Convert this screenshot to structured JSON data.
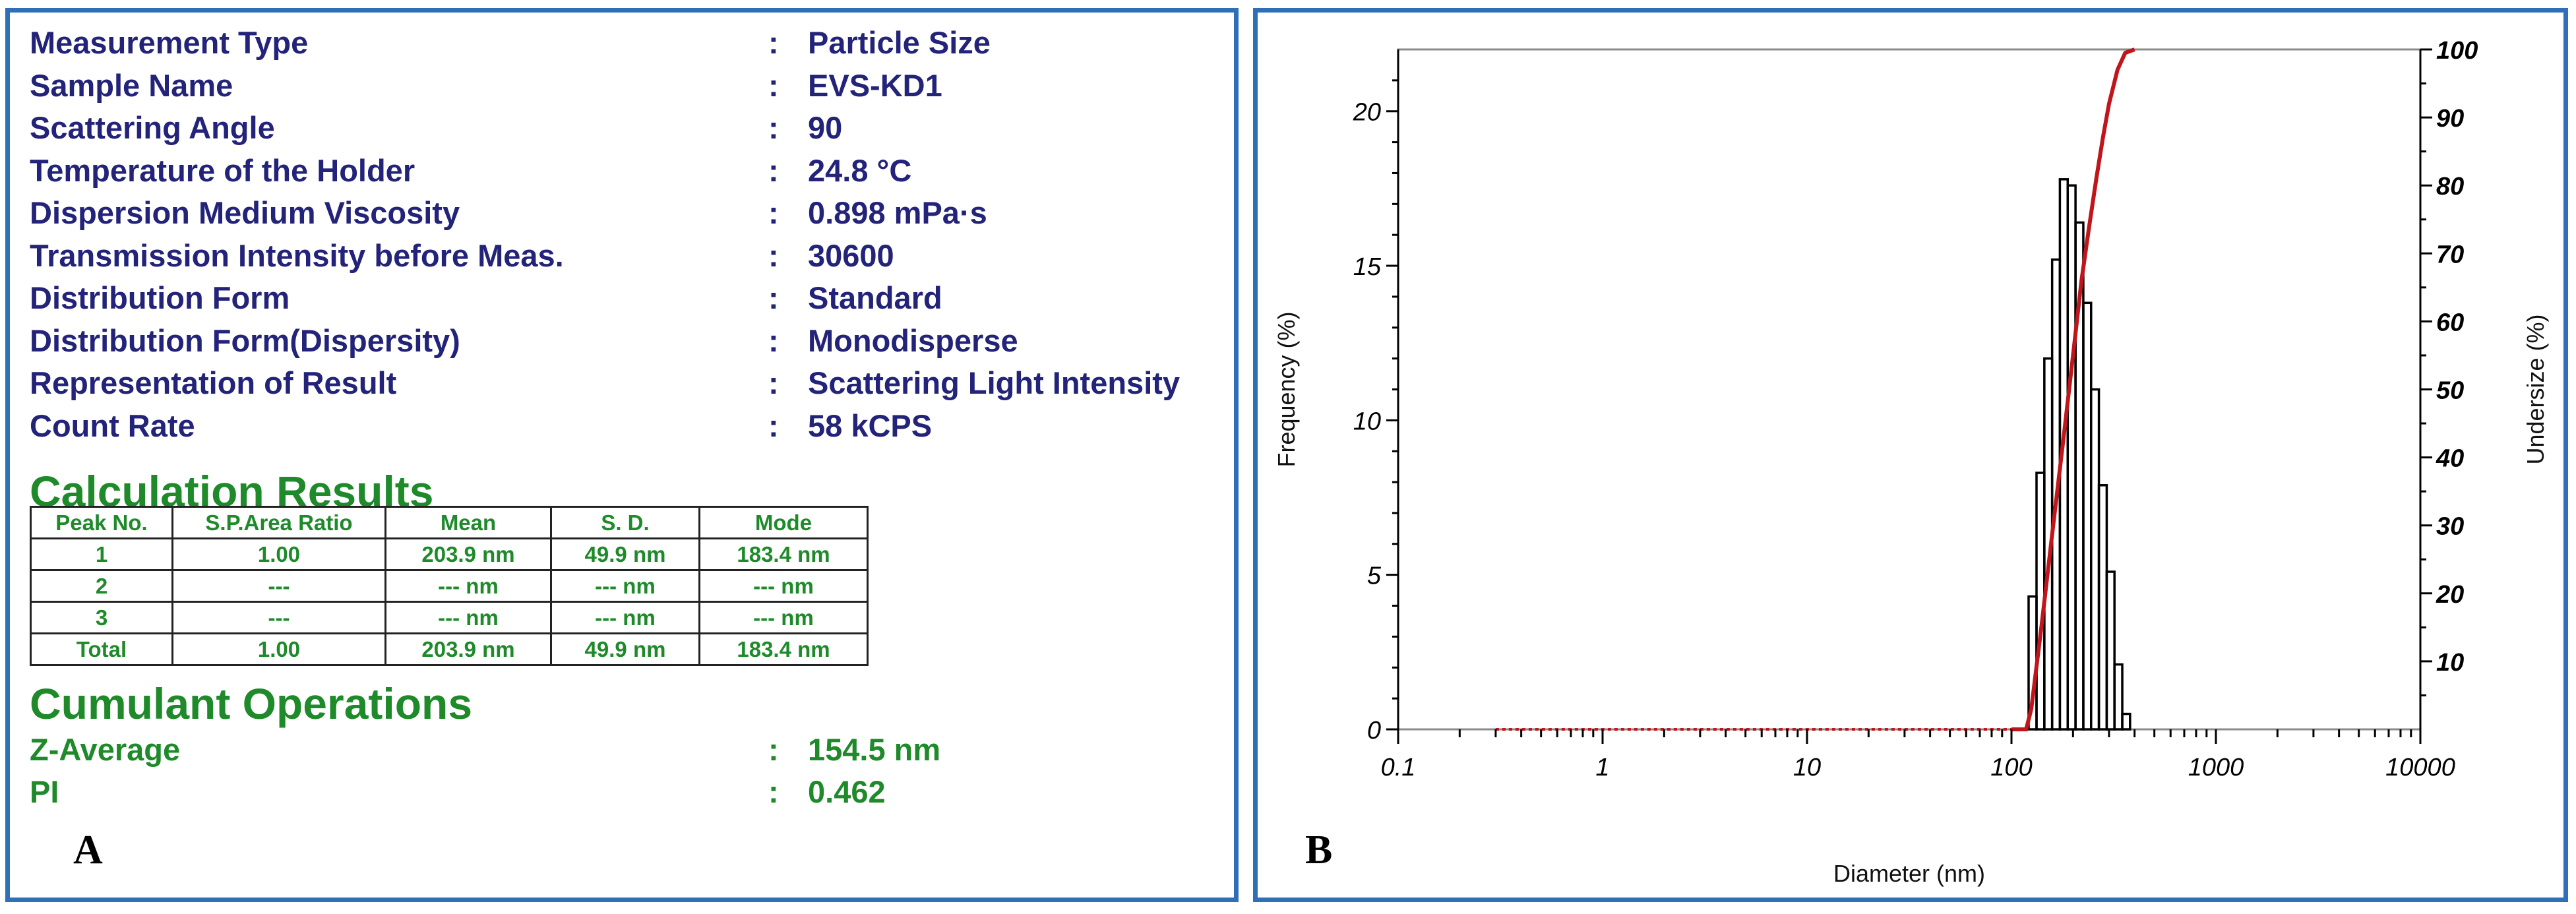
{
  "panel_a": {
    "letter": "A",
    "info": [
      {
        "label": "Measurement Type",
        "value": "Particle Size"
      },
      {
        "label": "Sample Name",
        "value": "EVS-KD1"
      },
      {
        "label": "Scattering Angle",
        "value": "90"
      },
      {
        "label": "Temperature of the Holder",
        "value": "24.8 °C"
      },
      {
        "label": "Dispersion Medium Viscosity",
        "value": "0.898 mPa·s"
      },
      {
        "label": "Transmission Intensity before Meas.",
        "value": "30600"
      },
      {
        "label": "Distribution Form",
        "value": "Standard"
      },
      {
        "label": "Distribution Form(Dispersity)",
        "value": "Monodisperse"
      },
      {
        "label": "Representation of Result",
        "value": "Scattering Light Intensity"
      },
      {
        "label": "Count Rate",
        "value": "58 kCPS"
      }
    ],
    "separator": ":",
    "calc_title": "Calculation Results",
    "table": {
      "headers": [
        "Peak No.",
        "S.P.Area Ratio",
        "Mean",
        "S. D.",
        "Mode"
      ],
      "rows": [
        [
          "1",
          "1.00",
          "203.9 nm",
          "49.9 nm",
          "183.4 nm"
        ],
        [
          "2",
          "---",
          "--- nm",
          "--- nm",
          "--- nm"
        ],
        [
          "3",
          "---",
          "--- nm",
          "--- nm",
          "--- nm"
        ],
        [
          "Total",
          "1.00",
          "203.9 nm",
          "49.9 nm",
          "183.4 nm"
        ]
      ]
    },
    "cumulant_title": "Cumulant Operations",
    "cumulant": [
      {
        "label": "Z-Average",
        "value": "154.5 nm"
      },
      {
        "label": "PI",
        "value": "0.462"
      }
    ]
  },
  "panel_b": {
    "letter": "B"
  },
  "chart_data": {
    "type": "bar",
    "xlabel": "Diameter (nm)",
    "ylabel": "Frequency (%)",
    "y2label": "Undersize (%)",
    "x_scale": "log",
    "xlim": [
      0.1,
      10000
    ],
    "x_ticks": [
      0.1,
      1,
      10,
      100,
      1000,
      10000
    ],
    "x_tick_labels": [
      "0.1",
      "1",
      "10",
      "100",
      "1000",
      "10000"
    ],
    "ylim": [
      0,
      22
    ],
    "y_ticks": [
      0,
      5,
      10,
      15,
      20
    ],
    "y_tick_labels": [
      "0",
      "5",
      "10",
      "15",
      "20"
    ],
    "y2lim": [
      0,
      100
    ],
    "y2_ticks": [
      10,
      20,
      30,
      40,
      50,
      60,
      70,
      80,
      90,
      100
    ],
    "y2_tick_labels": [
      "10",
      "20",
      "30",
      "40",
      "50",
      "60",
      "70",
      "80",
      "90",
      "100"
    ],
    "frequency": {
      "bin_edges": [
        111.0,
        121.3,
        132.6,
        144.8,
        158.1,
        172.5,
        188.4,
        205.7,
        224.6,
        245.2,
        267.7,
        292.3,
        319.0,
        348.3,
        380.2,
        415.0
      ],
      "values": [
        0.0,
        4.3,
        8.3,
        12.0,
        15.2,
        17.8,
        17.6,
        16.4,
        13.8,
        11.0,
        7.9,
        5.1,
        2.1,
        0.5,
        0.0
      ]
    },
    "undersize": {
      "x": [
        0.3,
        1,
        10,
        100,
        118,
        125,
        140,
        160,
        180,
        200,
        220,
        240,
        260,
        280,
        300,
        330,
        360,
        400
      ],
      "y": [
        0,
        0,
        0,
        0,
        0,
        3,
        15,
        30,
        43,
        55,
        66,
        74,
        81,
        87,
        92,
        97,
        99.5,
        100
      ]
    },
    "colors": {
      "frequency_bars": "#000000",
      "undersize_line": "#c0161b",
      "frame": "#8a8a8a",
      "axes": "#000000"
    }
  }
}
